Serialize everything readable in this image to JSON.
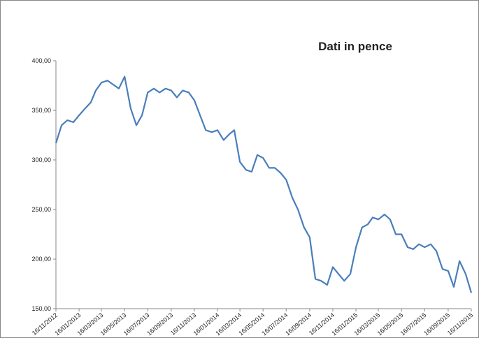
{
  "chart_data": {
    "type": "line",
    "title": "Dati in pence",
    "x": [
      "16/11/2012",
      "01/12/2012",
      "16/12/2012",
      "01/01/2013",
      "16/01/2013",
      "01/02/2013",
      "16/02/2013",
      "01/03/2013",
      "16/03/2013",
      "01/04/2013",
      "16/04/2013",
      "01/05/2013",
      "16/05/2013",
      "01/06/2013",
      "16/06/2013",
      "01/07/2013",
      "16/07/2013",
      "01/08/2013",
      "16/08/2013",
      "01/09/2013",
      "16/09/2013",
      "01/10/2013",
      "16/10/2013",
      "01/11/2013",
      "16/11/2013",
      "01/12/2013",
      "16/12/2013",
      "01/01/2014",
      "16/01/2014",
      "01/02/2014",
      "16/02/2014",
      "01/03/2014",
      "16/03/2014",
      "01/04/2014",
      "16/04/2014",
      "01/05/2014",
      "16/05/2014",
      "01/06/2014",
      "16/06/2014",
      "01/07/2014",
      "16/07/2014",
      "01/08/2014",
      "16/08/2014",
      "01/09/2014",
      "16/09/2014",
      "01/10/2014",
      "16/10/2014",
      "01/11/2014",
      "16/11/2014",
      "01/12/2014",
      "16/12/2014",
      "01/01/2015",
      "16/01/2015",
      "01/02/2015",
      "16/02/2015",
      "01/03/2015",
      "16/03/2015",
      "01/04/2015",
      "16/04/2015",
      "01/05/2015",
      "16/05/2015",
      "01/06/2015",
      "16/06/2015",
      "01/07/2015",
      "16/07/2015",
      "01/08/2015",
      "16/08/2015",
      "01/09/2015",
      "16/09/2015",
      "01/10/2015",
      "16/10/2015",
      "01/11/2015",
      "16/11/2015"
    ],
    "series": [
      {
        "color": "#4a7ebb",
        "values": [
          317,
          335,
          340,
          338,
          345,
          352,
          358,
          370,
          378,
          380,
          376,
          372,
          384,
          352,
          335,
          345,
          368,
          372,
          368,
          372,
          370,
          363,
          370,
          368,
          360,
          345,
          330,
          328,
          330,
          320,
          326,
          330,
          298,
          290,
          288,
          305,
          302,
          292,
          292,
          287,
          280,
          262,
          250,
          232,
          222,
          180,
          178,
          174,
          192,
          185,
          178,
          185,
          212,
          232,
          235,
          242,
          240,
          245,
          240,
          225,
          225,
          212,
          210,
          215,
          212,
          215,
          208,
          190,
          188,
          172,
          198,
          185,
          166
        ]
      }
    ],
    "xlim": [
      "16/11/2012",
      "16/11/2015"
    ],
    "xticks": [
      "16/11/2012",
      "16/01/2013",
      "16/03/2013",
      "16/05/2013",
      "16/07/2013",
      "16/09/2013",
      "16/11/2013",
      "16/01/2014",
      "16/03/2014",
      "16/05/2014",
      "16/07/2014",
      "16/09/2014",
      "16/11/2014",
      "16/01/2015",
      "16/03/2015",
      "16/05/2015",
      "16/07/2015",
      "16/09/2015",
      "16/11/2015"
    ],
    "ylim": [
      150,
      400
    ],
    "yticks": [
      {
        "value": 150,
        "label": "150,00"
      },
      {
        "value": 200,
        "label": "200,00"
      },
      {
        "value": 250,
        "label": "250,00"
      },
      {
        "value": 300,
        "label": "300,00"
      },
      {
        "value": 350,
        "label": "350,00"
      },
      {
        "value": 400,
        "label": "400,00"
      }
    ]
  }
}
